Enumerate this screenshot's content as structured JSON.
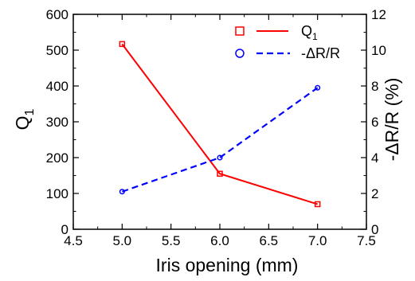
{
  "chart_data": {
    "type": "line",
    "x": [
      5.0,
      6.0,
      7.0
    ],
    "xlabel": "Iris opening (mm)",
    "xlim": [
      4.5,
      7.5
    ],
    "xticks": [
      "4.5",
      "5.0",
      "5.5",
      "6.0",
      "6.5",
      "7.0",
      "7.5"
    ],
    "ylabel_left": "Q",
    "ylabel_left_sub": "1",
    "ylim_left": [
      0,
      600
    ],
    "yticks_left": [
      "0",
      "100",
      "200",
      "300",
      "400",
      "500",
      "600"
    ],
    "ylabel_right": "-ΔR/R (%)",
    "ylim_right": [
      0,
      12
    ],
    "yticks_right": [
      "0",
      "2",
      "4",
      "6",
      "8",
      "10",
      "12"
    ],
    "grid": false,
    "legend_position": "top-right",
    "series": [
      {
        "name": "Q",
        "name_sub": "1",
        "axis": "left",
        "values": [
          517,
          155,
          70
        ],
        "color": "#ff0000",
        "line_style": "solid",
        "marker": "square"
      },
      {
        "name": "-ΔR/R",
        "axis": "right",
        "values": [
          2.1,
          4.0,
          7.9
        ],
        "color": "#0000ff",
        "line_style": "dashed",
        "marker": "circle"
      }
    ]
  }
}
